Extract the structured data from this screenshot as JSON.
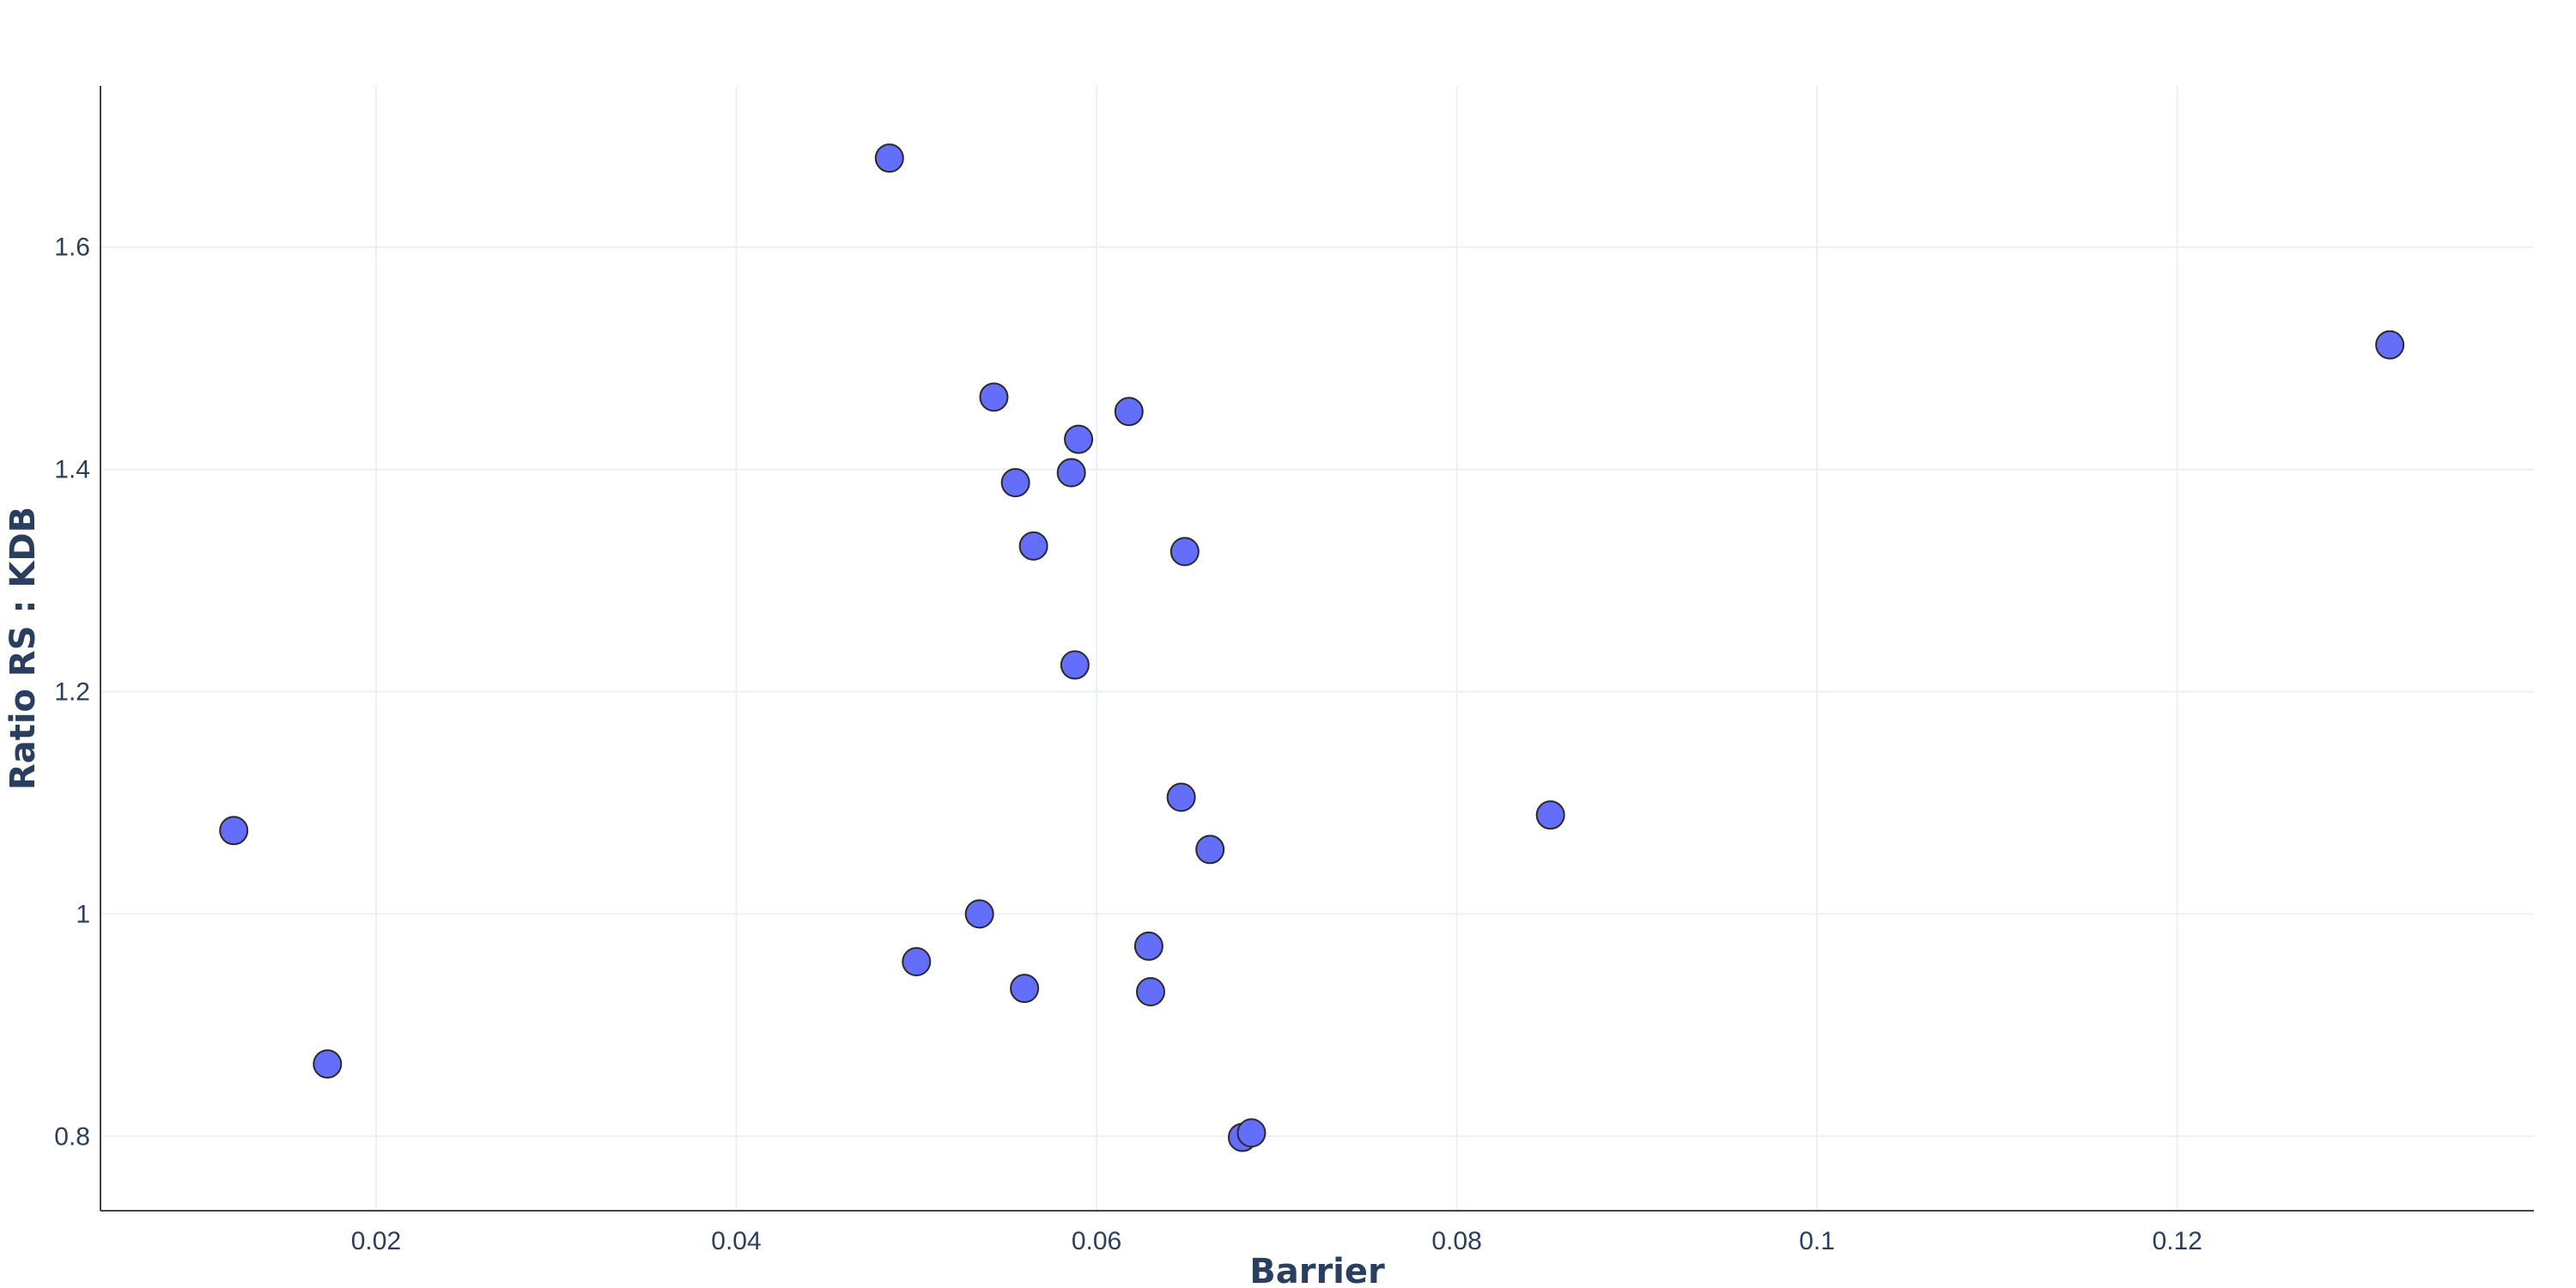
{
  "chart_data": {
    "type": "scatter",
    "xlabel": "Barrier",
    "ylabel": "Ratio RS : KDB",
    "xlim": [
      0.0047,
      0.1398
    ],
    "ylim": [
      0.733,
      1.745
    ],
    "x_ticks": [
      0.02,
      0.04,
      0.06,
      0.08,
      0.1,
      0.12
    ],
    "x_tick_labels": [
      "0.02",
      "0.04",
      "0.06",
      "0.08",
      "0.1",
      "0.12"
    ],
    "y_ticks": [
      0.8,
      1.0,
      1.2,
      1.4,
      1.6
    ],
    "y_tick_labels": [
      "0.8",
      "1",
      "1.2",
      "1.4",
      "1.6"
    ],
    "grid": true,
    "marker_color": "#636efa",
    "points": [
      {
        "x": 0.0121,
        "y": 1.075
      },
      {
        "x": 0.0173,
        "y": 0.865
      },
      {
        "x": 0.0485,
        "y": 1.68
      },
      {
        "x": 0.05,
        "y": 0.957
      },
      {
        "x": 0.0535,
        "y": 1.0
      },
      {
        "x": 0.0543,
        "y": 1.465
      },
      {
        "x": 0.0555,
        "y": 1.388
      },
      {
        "x": 0.056,
        "y": 0.933
      },
      {
        "x": 0.0565,
        "y": 1.331
      },
      {
        "x": 0.0586,
        "y": 1.397
      },
      {
        "x": 0.0588,
        "y": 1.224
      },
      {
        "x": 0.059,
        "y": 1.427
      },
      {
        "x": 0.0618,
        "y": 1.452
      },
      {
        "x": 0.0629,
        "y": 0.971
      },
      {
        "x": 0.063,
        "y": 0.93
      },
      {
        "x": 0.0647,
        "y": 1.105
      },
      {
        "x": 0.0649,
        "y": 1.326
      },
      {
        "x": 0.0663,
        "y": 1.058
      },
      {
        "x": 0.0681,
        "y": 0.799
      },
      {
        "x": 0.0686,
        "y": 0.803
      },
      {
        "x": 0.0852,
        "y": 1.089
      },
      {
        "x": 0.1318,
        "y": 1.512
      }
    ]
  }
}
